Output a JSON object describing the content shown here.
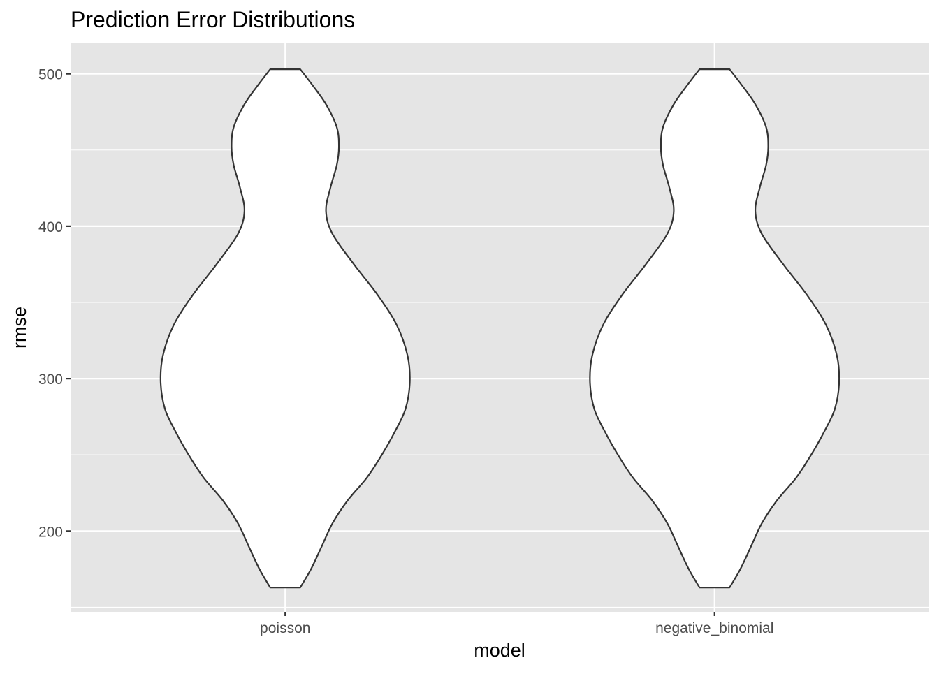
{
  "chart_data": {
    "type": "violin",
    "title": "Prediction Error Distributions",
    "xlabel": "model",
    "ylabel": "rmse",
    "categories": [
      "poisson",
      "negative_binomial"
    ],
    "ylim": [
      147,
      520
    ],
    "y_ticks": [
      200,
      300,
      400,
      500
    ],
    "y_tick_labels": [
      "200",
      "300",
      "400",
      "500"
    ],
    "grid": true,
    "panel_background": "#e5e5e5",
    "grid_color": "#ffffff",
    "violin_fill": "#ffffff",
    "violin_stroke": "#333333",
    "series": [
      {
        "category": "poisson",
        "range": [
          163,
          503
        ],
        "density_profile": [
          {
            "rmse": 163,
            "half_width": 0.07
          },
          {
            "rmse": 175,
            "half_width": 0.12
          },
          {
            "rmse": 190,
            "half_width": 0.17
          },
          {
            "rmse": 205,
            "half_width": 0.22
          },
          {
            "rmse": 220,
            "half_width": 0.29
          },
          {
            "rmse": 235,
            "half_width": 0.38
          },
          {
            "rmse": 250,
            "half_width": 0.45
          },
          {
            "rmse": 265,
            "half_width": 0.51
          },
          {
            "rmse": 280,
            "half_width": 0.56
          },
          {
            "rmse": 297,
            "half_width": 0.58
          },
          {
            "rmse": 315,
            "half_width": 0.57
          },
          {
            "rmse": 335,
            "half_width": 0.52
          },
          {
            "rmse": 355,
            "half_width": 0.43
          },
          {
            "rmse": 375,
            "half_width": 0.32
          },
          {
            "rmse": 395,
            "half_width": 0.22
          },
          {
            "rmse": 410,
            "half_width": 0.19
          },
          {
            "rmse": 425,
            "half_width": 0.21
          },
          {
            "rmse": 440,
            "half_width": 0.24
          },
          {
            "rmse": 452,
            "half_width": 0.25
          },
          {
            "rmse": 465,
            "half_width": 0.24
          },
          {
            "rmse": 480,
            "half_width": 0.19
          },
          {
            "rmse": 492,
            "half_width": 0.13
          },
          {
            "rmse": 503,
            "half_width": 0.07
          }
        ]
      },
      {
        "category": "negative_binomial",
        "range": [
          163,
          503
        ],
        "density_profile": [
          {
            "rmse": 163,
            "half_width": 0.07
          },
          {
            "rmse": 175,
            "half_width": 0.12
          },
          {
            "rmse": 190,
            "half_width": 0.17
          },
          {
            "rmse": 205,
            "half_width": 0.22
          },
          {
            "rmse": 220,
            "half_width": 0.29
          },
          {
            "rmse": 235,
            "half_width": 0.38
          },
          {
            "rmse": 250,
            "half_width": 0.45
          },
          {
            "rmse": 265,
            "half_width": 0.51
          },
          {
            "rmse": 280,
            "half_width": 0.56
          },
          {
            "rmse": 297,
            "half_width": 0.58
          },
          {
            "rmse": 315,
            "half_width": 0.57
          },
          {
            "rmse": 335,
            "half_width": 0.52
          },
          {
            "rmse": 355,
            "half_width": 0.43
          },
          {
            "rmse": 375,
            "half_width": 0.32
          },
          {
            "rmse": 395,
            "half_width": 0.22
          },
          {
            "rmse": 410,
            "half_width": 0.19
          },
          {
            "rmse": 425,
            "half_width": 0.21
          },
          {
            "rmse": 440,
            "half_width": 0.24
          },
          {
            "rmse": 452,
            "half_width": 0.25
          },
          {
            "rmse": 465,
            "half_width": 0.24
          },
          {
            "rmse": 480,
            "half_width": 0.19
          },
          {
            "rmse": 492,
            "half_width": 0.13
          },
          {
            "rmse": 503,
            "half_width": 0.07
          }
        ]
      }
    ]
  }
}
